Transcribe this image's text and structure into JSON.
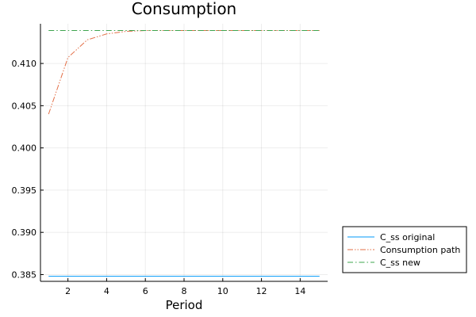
{
  "chart_data": {
    "type": "line",
    "title": "Consumption",
    "xlabel": "Period",
    "ylabel": "",
    "xlim": [
      0.58,
      15.42
    ],
    "ylim": [
      0.3842,
      0.4147
    ],
    "x_ticks": [
      2,
      4,
      6,
      8,
      10,
      12,
      14
    ],
    "x_tick_labels": [
      "2",
      "4",
      "6",
      "8",
      "10",
      "12",
      "14"
    ],
    "y_ticks": [
      0.385,
      0.39,
      0.395,
      0.4,
      0.405,
      0.41
    ],
    "y_tick_labels": [
      "0.385",
      "0.390",
      "0.395",
      "0.400",
      "0.405",
      "0.410"
    ],
    "grid": true,
    "legend_position": "outside-bottom-right",
    "x": [
      1,
      2,
      3,
      4,
      5,
      6,
      7,
      8,
      9,
      10,
      11,
      12,
      13,
      14,
      15
    ],
    "series": [
      {
        "name": "C_ss original",
        "color": "#009AFA",
        "dash": "solid",
        "values": [
          0.3848,
          0.3848,
          0.3848,
          0.3848,
          0.3848,
          0.3848,
          0.3848,
          0.3848,
          0.3848,
          0.3848,
          0.3848,
          0.3848,
          0.3848,
          0.3848,
          0.3848
        ]
      },
      {
        "name": "Consumption path",
        "color": "#E36F47",
        "dash": "dashdotdot",
        "values": [
          0.404,
          0.4107,
          0.4128,
          0.4135,
          0.4138,
          0.4139,
          0.4139,
          0.4139,
          0.4139,
          0.4139,
          0.4139,
          0.4139,
          0.4139,
          0.4139,
          0.4139
        ]
      },
      {
        "name": "C_ss new",
        "color": "#3EA44E",
        "dash": "dashdot",
        "values": [
          0.4139,
          0.4139,
          0.4139,
          0.4139,
          0.4139,
          0.4139,
          0.4139,
          0.4139,
          0.4139,
          0.4139,
          0.4139,
          0.4139,
          0.4139,
          0.4139,
          0.4139
        ]
      }
    ]
  }
}
